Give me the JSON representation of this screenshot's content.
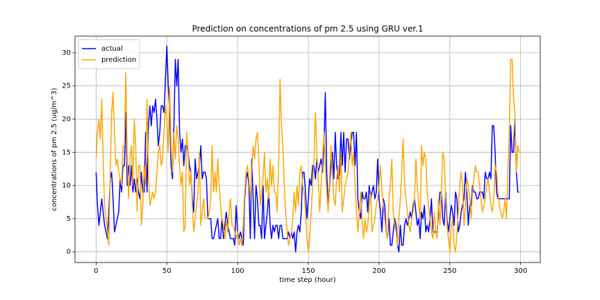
{
  "chart_data": {
    "type": "line",
    "title": "Prediction on concentrations of pm 2.5 using GRU ver.1",
    "x_label": "time step (hour)",
    "y_label": "concentrations of pm 2.5 (ug/m^3)",
    "xlim": [
      -14.9,
      313.9
    ],
    "ylim": [
      -1.6,
      32.5
    ],
    "xticks": [
      0,
      50,
      100,
      150,
      200,
      250,
      300
    ],
    "yticks": [
      0,
      5,
      10,
      15,
      20,
      25,
      30
    ],
    "grid": true,
    "legend": "upper left",
    "x": [
      0,
      1,
      2,
      3,
      4,
      5,
      6,
      7,
      8,
      9,
      10,
      11,
      12,
      13,
      14,
      15,
      16,
      17,
      18,
      19,
      20,
      21,
      22,
      23,
      24,
      25,
      26,
      27,
      28,
      29,
      30,
      31,
      32,
      33,
      34,
      35,
      36,
      37,
      38,
      39,
      40,
      41,
      42,
      43,
      44,
      45,
      46,
      47,
      48,
      49,
      50,
      51,
      52,
      53,
      54,
      55,
      56,
      57,
      58,
      59,
      60,
      61,
      62,
      63,
      64,
      65,
      66,
      67,
      68,
      69,
      70,
      71,
      72,
      73,
      74,
      75,
      76,
      77,
      78,
      79,
      80,
      81,
      82,
      83,
      84,
      85,
      86,
      87,
      88,
      89,
      90,
      91,
      92,
      93,
      94,
      95,
      96,
      97,
      98,
      99,
      100,
      101,
      102,
      103,
      104,
      105,
      106,
      107,
      108,
      109,
      110,
      111,
      112,
      113,
      114,
      115,
      116,
      117,
      118,
      119,
      120,
      121,
      122,
      123,
      124,
      125,
      126,
      127,
      128,
      129,
      130,
      131,
      132,
      133,
      134,
      135,
      136,
      137,
      138,
      139,
      140,
      141,
      142,
      143,
      144,
      145,
      146,
      147,
      148,
      149,
      150,
      151,
      152,
      153,
      154,
      155,
      156,
      157,
      158,
      159,
      160,
      161,
      162,
      163,
      164,
      165,
      166,
      167,
      168,
      169,
      170,
      171,
      172,
      173,
      174,
      175,
      176,
      177,
      178,
      179,
      180,
      181,
      182,
      183,
      184,
      185,
      186,
      187,
      188,
      189,
      190,
      191,
      192,
      193,
      194,
      195,
      196,
      197,
      198,
      199,
      200,
      201,
      202,
      203,
      204,
      205,
      206,
      207,
      208,
      209,
      210,
      211,
      212,
      213,
      214,
      215,
      216,
      217,
      218,
      219,
      220,
      221,
      222,
      223,
      224,
      225,
      226,
      227,
      228,
      229,
      230,
      231,
      232,
      233,
      234,
      235,
      236,
      237,
      238,
      239,
      240,
      241,
      242,
      243,
      244,
      245,
      246,
      247,
      248,
      249,
      250,
      251,
      252,
      253,
      254,
      255,
      256,
      257,
      258,
      259,
      260,
      261,
      262,
      263,
      264,
      265,
      266,
      267,
      268,
      269,
      270,
      271,
      272,
      273,
      274,
      275,
      276,
      277,
      278,
      279,
      280,
      281,
      282,
      283,
      284,
      285,
      286,
      287,
      288,
      289,
      290,
      291,
      292,
      293,
      294,
      295,
      296,
      297,
      298,
      299
    ],
    "series": [
      {
        "name": "actual",
        "color": "#0000ff",
        "values": [
          12,
          7,
          4,
          6,
          8,
          6,
          4,
          3,
          2,
          6,
          11,
          12,
          8,
          3,
          4,
          5,
          6,
          11,
          9,
          13,
          13,
          21,
          10,
          13,
          10,
          13,
          9,
          11,
          9,
          11,
          9,
          8,
          12,
          9,
          9,
          18,
          9,
          19,
          22,
          19,
          22,
          21,
          23,
          20,
          16,
          18,
          22,
          22,
          21,
          26,
          31,
          25,
          21,
          13,
          11,
          19,
          29,
          25,
          29,
          18,
          15,
          17,
          13,
          16,
          16,
          15,
          13,
          12,
          8,
          6,
          14,
          11,
          12,
          13,
          16,
          11,
          12,
          12,
          11,
          5,
          5,
          5,
          2,
          2,
          3,
          4,
          5,
          2,
          2,
          5,
          2,
          4,
          6,
          4,
          3,
          2,
          2,
          2,
          1,
          7,
          3,
          2,
          3,
          2,
          1,
          8,
          11,
          12,
          10,
          2,
          14,
          8,
          2,
          10,
          8,
          4,
          4,
          2,
          10,
          2,
          4,
          6,
          9,
          4,
          2,
          4,
          3,
          4,
          4,
          2,
          4,
          4,
          2,
          2,
          2,
          2,
          3,
          2,
          3,
          2,
          3,
          0,
          3,
          4,
          3,
          6,
          12,
          12,
          9,
          5,
          8,
          11,
          10,
          13,
          13,
          11,
          14,
          12,
          13,
          14,
          12,
          16,
          24,
          12,
          7,
          10,
          13,
          15,
          11,
          18,
          13,
          11,
          12,
          18,
          13,
          18,
          12,
          17,
          17,
          14,
          16,
          18,
          18,
          13,
          18,
          8,
          6,
          5,
          9,
          8,
          8,
          9,
          6,
          10,
          8,
          9,
          10,
          8,
          9,
          14,
          8,
          6,
          3,
          8,
          7,
          3,
          2,
          5,
          1,
          1,
          3,
          5,
          4,
          1,
          0,
          4,
          1,
          1,
          4,
          5,
          4,
          5,
          6,
          5,
          7,
          8,
          6,
          4,
          5,
          2,
          6,
          5,
          7,
          3,
          4,
          3,
          5,
          8,
          3,
          3,
          3,
          3,
          6,
          9,
          9,
          5,
          4,
          9,
          5,
          3,
          5,
          7,
          6,
          4,
          9,
          8,
          3,
          4,
          6,
          7,
          8,
          12,
          9,
          4,
          7,
          7,
          10,
          9,
          9,
          8,
          8,
          9,
          9,
          9,
          8,
          12,
          11,
          11,
          12,
          11,
          19,
          19,
          15,
          9,
          8,
          8,
          8,
          8,
          8,
          8,
          8,
          8,
          8,
          19,
          15,
          15,
          20,
          12,
          9,
          9
        ]
      },
      {
        "name": "prediction",
        "color": "#ffa500",
        "values": [
          14,
          18,
          20,
          17,
          23,
          14,
          7,
          5,
          3,
          1,
          12,
          21,
          24,
          18,
          13,
          14,
          12,
          11,
          10,
          16,
          16,
          27,
          14,
          8,
          14,
          16,
          10,
          20,
          16,
          6,
          13,
          13,
          4,
          7,
          13,
          10,
          23,
          12,
          7,
          8,
          9,
          8,
          9,
          12,
          15,
          16,
          13,
          14,
          18,
          22,
          20,
          15,
          25,
          16,
          12,
          18,
          14,
          19,
          17,
          13,
          10,
          12,
          3,
          4,
          18,
          15,
          10,
          12,
          7,
          3,
          5,
          7,
          9,
          15,
          4,
          6,
          8,
          5,
          5,
          5,
          6,
          8,
          16,
          9,
          12,
          9,
          14,
          10,
          7,
          5,
          4,
          2,
          5,
          3,
          6,
          8,
          4,
          4,
          3,
          2,
          3,
          1,
          2,
          1,
          4,
          9,
          12,
          13,
          11,
          8,
          12,
          16,
          14,
          17,
          18,
          14,
          7,
          9,
          11,
          15,
          9,
          11,
          8,
          14,
          10,
          13,
          9,
          9,
          6,
          13,
          26,
          19,
          16,
          10,
          6,
          3,
          1,
          2,
          3,
          5,
          9,
          6,
          10,
          7,
          12,
          13,
          10,
          9,
          6,
          2,
          0,
          2,
          6,
          10,
          14,
          21,
          15,
          11,
          6,
          10,
          14,
          18,
          13,
          9,
          6,
          11,
          16,
          12,
          8,
          7,
          11,
          13,
          9,
          15,
          6,
          8,
          10,
          11,
          12,
          15,
          18,
          13,
          15,
          10,
          6,
          3,
          6,
          9,
          5,
          2,
          5,
          3,
          4,
          7,
          9,
          3,
          4,
          5,
          7,
          8,
          10,
          13,
          9,
          7,
          5,
          3,
          2,
          8,
          10,
          14,
          6,
          4,
          3,
          1,
          5,
          8,
          12,
          17,
          10,
          8,
          6,
          4,
          3,
          5,
          6,
          8,
          14,
          10,
          7,
          5,
          16,
          13,
          15,
          14,
          9,
          7,
          5,
          3,
          2,
          6,
          3,
          2,
          8,
          4,
          9,
          15,
          14,
          8,
          4,
          2,
          0,
          4,
          5,
          1,
          0,
          3,
          6,
          10,
          12,
          10,
          4,
          7,
          11,
          10,
          8,
          5,
          9,
          11,
          13,
          12,
          12,
          10,
          8,
          6,
          7,
          8,
          10,
          11,
          9,
          7,
          6,
          8,
          13,
          12,
          9,
          7,
          6,
          5,
          6,
          8,
          5,
          12,
          18,
          29,
          29,
          23,
          21,
          12,
          16,
          15
        ]
      }
    ]
  }
}
